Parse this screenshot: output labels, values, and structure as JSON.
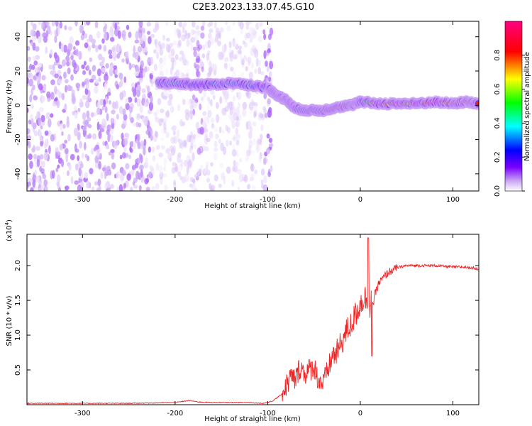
{
  "title": "C2E3.2023.133.07.45.G10",
  "chart_data": [
    {
      "type": "heatmap",
      "xlabel": "Height of straight line (km)",
      "ylabel": "Frequency (Hz)",
      "xlim": [
        -360,
        128
      ],
      "ylim": [
        -50,
        49
      ],
      "x_ticks": [
        {
          "value": -300,
          "label": "-300"
        },
        {
          "value": -200,
          "label": "-200"
        },
        {
          "value": -100,
          "label": "-100"
        },
        {
          "value": 0,
          "label": "0"
        },
        {
          "value": 100,
          "label": "100"
        }
      ],
      "y_ticks": [
        {
          "value": -40,
          "label": "-40"
        },
        {
          "value": -20,
          "label": "-20"
        },
        {
          "value": 0,
          "label": "0"
        },
        {
          "value": 20,
          "label": "20"
        },
        {
          "value": 40,
          "label": "40"
        }
      ],
      "colorbar": {
        "label": "Normalized spectral amplitude",
        "range": [
          0,
          1
        ],
        "ticks": [
          {
            "value": 0.0,
            "label": "0.0"
          },
          {
            "value": 0.2,
            "label": "0.2"
          },
          {
            "value": 0.4,
            "label": "0.4"
          },
          {
            "value": 0.6,
            "label": "0.6"
          },
          {
            "value": 0.8,
            "label": "0.8"
          }
        ],
        "colors": [
          "#ffffff",
          "#c9a4f4",
          "#7a00ff",
          "#0000ff",
          "#00ffff",
          "#00ff00",
          "#ffff00",
          "#ff0000",
          "#ff0080"
        ]
      },
      "noise_region": {
        "x": [
          -360,
          -96
        ],
        "y": [
          -50,
          49
        ],
        "amplitude": 0.15
      },
      "ridge": [
        {
          "x": -218,
          "y": 13,
          "amp": 0.45
        },
        {
          "x": -200,
          "y": 13,
          "amp": 0.55
        },
        {
          "x": -180,
          "y": 12,
          "amp": 0.35
        },
        {
          "x": -160,
          "y": 12,
          "amp": 0.45
        },
        {
          "x": -140,
          "y": 13,
          "amp": 0.55
        },
        {
          "x": -120,
          "y": 12,
          "amp": 0.5
        },
        {
          "x": -100,
          "y": 10,
          "amp": 0.45
        },
        {
          "x": -90,
          "y": 6,
          "amp": 0.5
        },
        {
          "x": -80,
          "y": 3,
          "amp": 0.55
        },
        {
          "x": -70,
          "y": -2,
          "amp": 0.5
        },
        {
          "x": -55,
          "y": -3,
          "amp": 0.6
        },
        {
          "x": -40,
          "y": -3,
          "amp": 0.7
        },
        {
          "x": -25,
          "y": -1,
          "amp": 0.75
        },
        {
          "x": -10,
          "y": 0,
          "amp": 0.8
        },
        {
          "x": 0,
          "y": 2,
          "amp": 0.55
        },
        {
          "x": 20,
          "y": 1,
          "amp": 0.85
        },
        {
          "x": 40,
          "y": 1,
          "amp": 0.8
        },
        {
          "x": 60,
          "y": 1,
          "amp": 0.85
        },
        {
          "x": 80,
          "y": 2,
          "amp": 0.95
        },
        {
          "x": 100,
          "y": 1,
          "amp": 0.85
        },
        {
          "x": 115,
          "y": 2,
          "amp": 0.9
        },
        {
          "x": 128,
          "y": 1,
          "amp": 0.85
        }
      ]
    },
    {
      "type": "line",
      "xlabel": "Height of straight line (km)",
      "ylabel": "SNR (10 * v/v)",
      "y_multiplier": "(x10",
      "y_multiplier_exp": "4",
      "y_multiplier_close": ")",
      "xlim": [
        -360,
        128
      ],
      "ylim": [
        0,
        2.45
      ],
      "x_ticks": [
        {
          "value": -300,
          "label": "-300"
        },
        {
          "value": -200,
          "label": "-200"
        },
        {
          "value": -100,
          "label": "-100"
        },
        {
          "value": 0,
          "label": "0"
        },
        {
          "value": 100,
          "label": "100"
        }
      ],
      "y_ticks": [
        {
          "value": 0.5,
          "label": "0.5"
        },
        {
          "value": 1.0,
          "label": "1.0"
        },
        {
          "value": 1.5,
          "label": "1.5"
        },
        {
          "value": 2.0,
          "label": "2.0"
        }
      ],
      "line_color": "#ee2222",
      "series": [
        {
          "x": [
            -360,
            -300,
            -250,
            -200,
            -185,
            -175,
            -160,
            -140,
            -120,
            -105,
            -95,
            -85,
            -75,
            -70,
            -65,
            -60,
            -55,
            -50,
            -45,
            -40,
            -35,
            -30,
            -25,
            -20,
            -15,
            -10,
            -5,
            0,
            5,
            10,
            15,
            20,
            30,
            40,
            50,
            60,
            80,
            100,
            110,
            120,
            128
          ],
          "y": [
            0.02,
            0.02,
            0.02,
            0.03,
            0.06,
            0.04,
            0.03,
            0.03,
            0.03,
            0.02,
            0.05,
            0.15,
            0.4,
            0.35,
            0.55,
            0.45,
            0.5,
            0.55,
            0.35,
            0.3,
            0.5,
            0.7,
            0.75,
            0.9,
            1.05,
            1.15,
            1.3,
            1.45,
            1.55,
            1.4,
            1.55,
            1.75,
            1.9,
            1.97,
            2.0,
            2.0,
            2.0,
            1.98,
            1.98,
            1.97,
            1.95
          ]
        }
      ]
    }
  ]
}
